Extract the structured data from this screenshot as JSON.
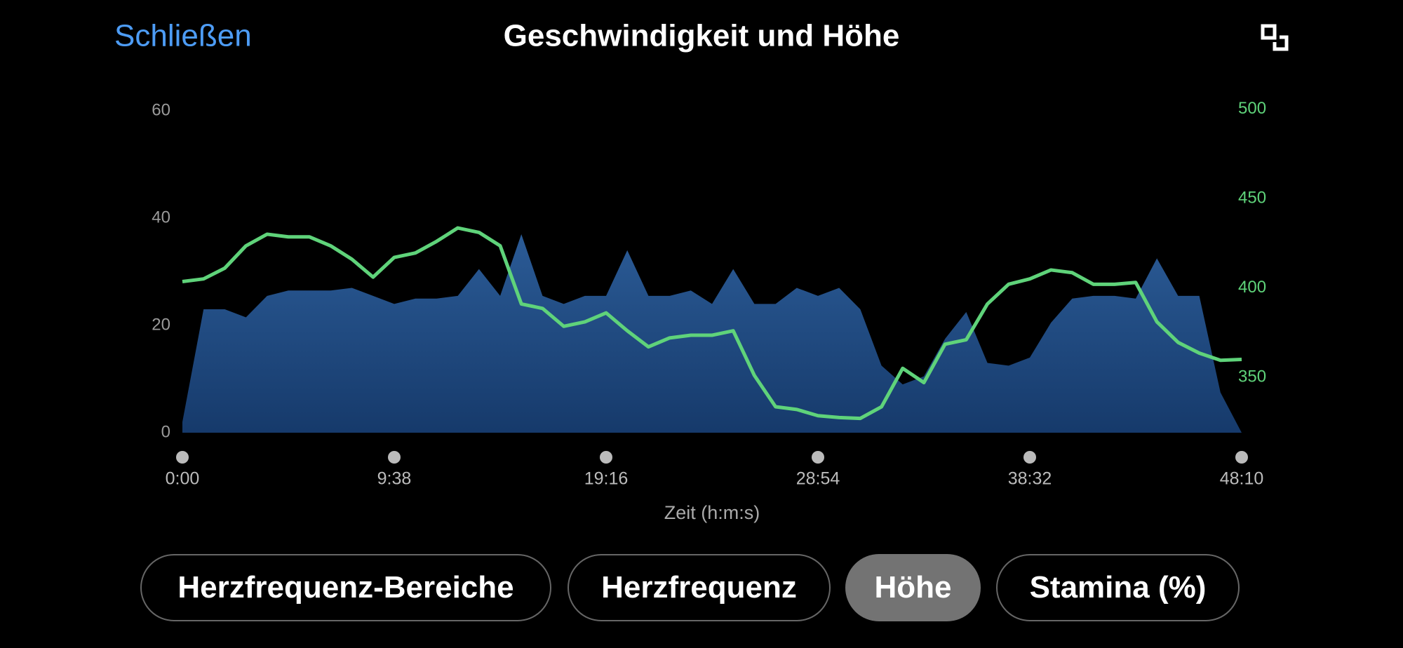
{
  "header": {
    "close": "Schließen",
    "title": "Geschwindigkeit und Höhe"
  },
  "chart_data": {
    "type": "area",
    "x": [
      0,
      57.8,
      115.6,
      173.4,
      231.2,
      289,
      346.8,
      404.6,
      462.4,
      520.2,
      578,
      635.8,
      693.6,
      751.4,
      809.2,
      867,
      924.8,
      982.6,
      1040.4,
      1098.2,
      1156,
      1213.8,
      1271.6,
      1329.4,
      1387.2,
      1445,
      1502.8,
      1560.6,
      1618.4,
      1676.2,
      1734,
      1791.8,
      1849.6,
      1907.4,
      1965.2,
      2023,
      2080.8,
      2138.6,
      2196.4,
      2254.2,
      2312,
      2369.8,
      2427.6,
      2485.4,
      2543.2,
      2601,
      2658.8,
      2716.6,
      2774.4,
      2832.2,
      2890
    ],
    "series": [
      {
        "color": "#1f4c84",
        "values": [
          2,
          23,
          23,
          21.5,
          25.5,
          26.5,
          26.5,
          26.5,
          27,
          25.5,
          24,
          25,
          25,
          25.5,
          30.5,
          25.5,
          37,
          25.5,
          24,
          25.5,
          25.5,
          34,
          25.5,
          25.5,
          26.5,
          24,
          30.5,
          24,
          24,
          27,
          25.5,
          27,
          23,
          12.5,
          9,
          10.5,
          17.5,
          22.5,
          13,
          12.5,
          14,
          20.5,
          25,
          25.5,
          25.5,
          25,
          32.5,
          25.5,
          25.5,
          7.5,
          0
        ]
      },
      {
        "color": "#5fd37a",
        "axis": "y2",
        "values": [
          403.5,
          405,
          411,
          423.5,
          430,
          428.5,
          428.5,
          423.5,
          416,
          406,
          417,
          419.5,
          426,
          433.5,
          431,
          423.5,
          391,
          388.5,
          378.5,
          381,
          386,
          376,
          367,
          372,
          373.5,
          373.5,
          376,
          351,
          333.5,
          332,
          328.5,
          327.5,
          327,
          333.5,
          355,
          347,
          368.5,
          371,
          391,
          402,
          405,
          410,
          408.5,
          402,
          402,
          403,
          381,
          369.5,
          363.5,
          359.5,
          360
        ]
      }
    ],
    "xlim": [
      0,
      2890
    ],
    "xticks": [
      {
        "value": 0,
        "label": "0:00"
      },
      {
        "value": 578,
        "label": "9:38"
      },
      {
        "value": 1156,
        "label": "19:16"
      },
      {
        "value": 1734,
        "label": "28:54"
      },
      {
        "value": 2312,
        "label": "38:32"
      },
      {
        "value": 2890,
        "label": "48:10"
      }
    ],
    "xlabel": "Zeit (h:m:s)",
    "ylim": [
      0,
      60
    ],
    "yticks": [
      0,
      20,
      40,
      60
    ],
    "ytick_color": "#9a9a9a",
    "y2lim": [
      319,
      499
    ],
    "y2ticks": [
      350,
      400,
      450,
      500
    ],
    "y2tick_color": "#5fd37a"
  },
  "tabs": [
    {
      "label": "Herzfrequenz-Bereiche",
      "selected": false
    },
    {
      "label": "Herzfrequenz",
      "selected": false
    },
    {
      "label": "Höhe",
      "selected": true
    },
    {
      "label": "Stamina (%)",
      "selected": false
    }
  ]
}
